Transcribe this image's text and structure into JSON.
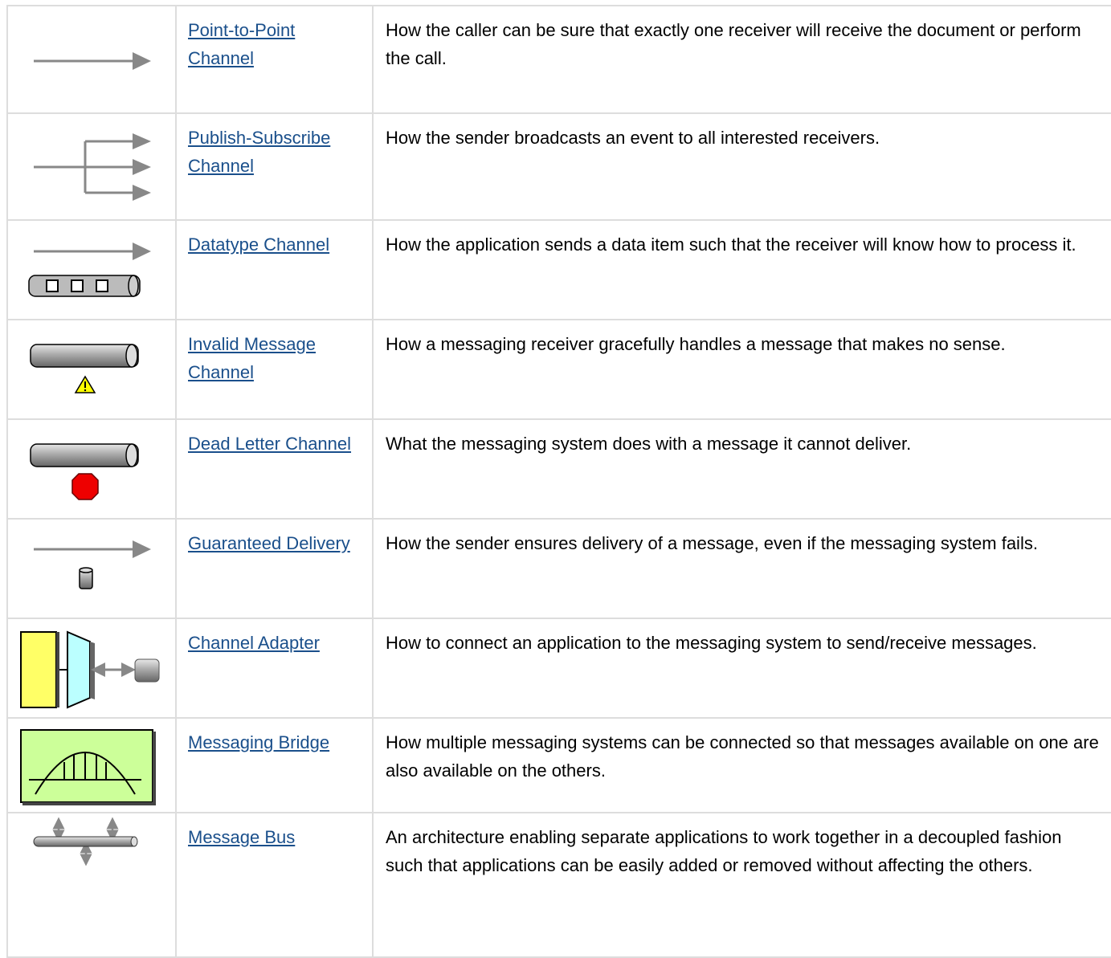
{
  "table": {
    "rows": [
      {
        "name": "Point-to-Point Channel",
        "description": "How the caller can be sure that exactly one receiver will receive the document or perform the call."
      },
      {
        "name": "Publish-Subscribe Channel",
        "description": "How the sender broadcasts an event to all interested receivers."
      },
      {
        "name": "Datatype Channel",
        "description": "How the application sends a data item such that the receiver will know how to process it."
      },
      {
        "name": "Invalid Message Channel",
        "description": "How a messaging receiver gracefully handles a message that makes no sense."
      },
      {
        "name": "Dead Letter Channel",
        "description": "What the messaging system does with a message it cannot deliver."
      },
      {
        "name": "Guaranteed Delivery",
        "description": "How the sender ensures delivery of a message, even if the messaging system fails."
      },
      {
        "name": "Channel Adapter",
        "description": "How to connect an application to the messaging system to send/receive messages."
      },
      {
        "name": "Messaging Bridge",
        "description": "How multiple messaging systems can be connected so that messages available on one are also available on the others."
      },
      {
        "name": "Message Bus",
        "description": "An architecture enabling separate applications to work together in a decoupled fashion such that applications can be easily added or removed without affecting the others."
      }
    ]
  }
}
